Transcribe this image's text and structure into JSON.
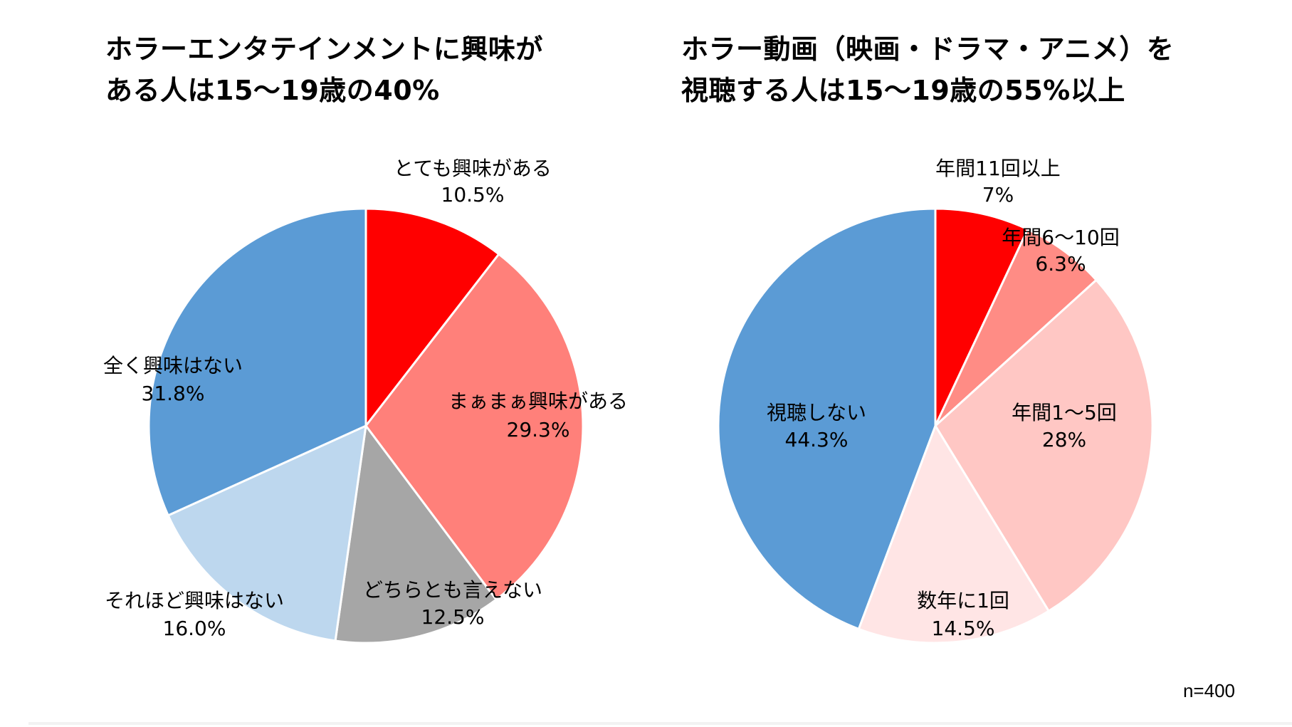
{
  "chart_data": [
    {
      "type": "pie",
      "title": [
        "ホラーエンタテインメントに興味が",
        "ある人は15～19歳の40%"
      ],
      "start_angle_deg": 0,
      "direction": "clockwise",
      "slices": [
        {
          "label": "とても興味がある",
          "value": 10.5,
          "value_label": "10.5%",
          "color": "#FF0000"
        },
        {
          "label": "まぁまぁ興味がある",
          "value": 29.3,
          "value_label": "29.3%",
          "color": "#FF807A"
        },
        {
          "label": "どちらとも言えない",
          "value": 12.5,
          "value_label": "12.5%",
          "color": "#A6A6A6"
        },
        {
          "label": "それほど興味はない",
          "value": 16.0,
          "value_label": "16.0%",
          "color": "#BDD7EE"
        },
        {
          "label": "全く興味はない",
          "value": 31.8,
          "value_label": "31.8%",
          "color": "#5B9BD5"
        }
      ]
    },
    {
      "type": "pie",
      "title": [
        "ホラー動画（映画・ドラマ・アニメ）を",
        "視聴する人は15～19歳の55%以上"
      ],
      "start_angle_deg": 0,
      "direction": "clockwise",
      "slices": [
        {
          "label": "年間11回以上",
          "value": 7,
          "value_label": "7%",
          "color": "#FF0000"
        },
        {
          "label": "年間6～10回",
          "value": 6.3,
          "value_label": "6.3%",
          "color": "#FF8C85"
        },
        {
          "label": "年間1～5回",
          "value": 28,
          "value_label": "28%",
          "color": "#FFC7C4"
        },
        {
          "label": "数年に1回",
          "value": 14.5,
          "value_label": "14.5%",
          "color": "#FFE5E5"
        },
        {
          "label": "視聴しない",
          "value": 44.3,
          "value_label": "44.3%",
          "color": "#5B9BD5"
        }
      ]
    }
  ],
  "sample_size": "n=400"
}
